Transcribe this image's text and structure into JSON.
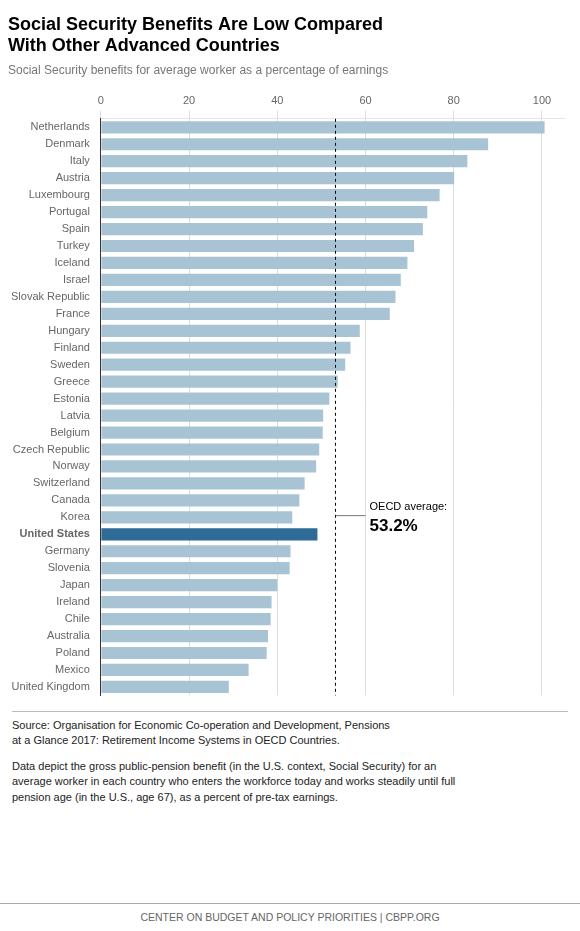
{
  "chart_data": {
    "type": "bar",
    "orientation": "horizontal",
    "title": [
      "Social Security Benefits Are Low Compared",
      "With Other Advanced Countries"
    ],
    "subtitle": "Social Security benefits for average worker as a percentage of earnings",
    "categories": [
      "Netherlands",
      "Denmark",
      "Italy",
      "Austria",
      "Luxembourg",
      "Portugal",
      "Spain",
      "Turkey",
      "Iceland",
      "Israel",
      "Slovak Republic",
      "France",
      "Hungary",
      "Finland",
      "Sweden",
      "Greece",
      "Estonia",
      "Latvia",
      "Belgium",
      "Czech Republic",
      "Norway",
      "Switzerland",
      "Canada",
      "Korea",
      "United States",
      "Germany",
      "Slovenia",
      "Japan",
      "Ireland",
      "Chile",
      "Australia",
      "Poland",
      "Mexico",
      "United Kingdom"
    ],
    "values": [
      100.6,
      87.8,
      83.1,
      80.1,
      76.8,
      74.0,
      73.0,
      71.0,
      69.5,
      68.0,
      66.8,
      65.5,
      58.7,
      56.6,
      55.4,
      53.7,
      51.8,
      50.4,
      50.3,
      49.5,
      48.8,
      46.2,
      45.0,
      43.4,
      49.1,
      43.0,
      42.8,
      40.0,
      38.7,
      38.5,
      37.9,
      37.6,
      33.5,
      29.0
    ],
    "colors": [
      "#a8c4d4",
      "#a8c4d4",
      "#a8c4d4",
      "#a8c4d4",
      "#a8c4d4",
      "#a8c4d4",
      "#a8c4d4",
      "#a8c4d4",
      "#a8c4d4",
      "#a8c4d4",
      "#a8c4d4",
      "#a8c4d4",
      "#a8c4d4",
      "#a8c4d4",
      "#a8c4d4",
      "#a8c4d4",
      "#a8c4d4",
      "#a8c4d4",
      "#a8c4d4",
      "#a8c4d4",
      "#a8c4d4",
      "#a8c4d4",
      "#a8c4d4",
      "#a8c4d4",
      "#2e6b96",
      "#a8c4d4",
      "#a8c4d4",
      "#a8c4d4",
      "#a8c4d4",
      "#a8c4d4",
      "#a8c4d4",
      "#a8c4d4",
      "#a8c4d4",
      "#a8c4d4"
    ],
    "xlim": [
      0,
      105
    ],
    "xticks": [
      0,
      20,
      40,
      60,
      80,
      100
    ],
    "grid": true,
    "annotations": [
      {
        "x": 53.2,
        "text": "OECD average:",
        "value_label": "53.2%"
      }
    ],
    "source": [
      "Source: Organisation for Economic Co-operation and Development, Pensions",
      "at a Glance 2017: Retirement Income Systems in OECD Countries."
    ],
    "note": [
      "Data depict the gross public-pension benefit (in the U.S. context, Social Security) for an",
      "average worker in each country who enters the workforce today and works steadily until full",
      "pension age (in the U.S., age 67), as a percent of pre-tax earnings."
    ],
    "footer": "CENTER ON BUDGET AND POLICY PRIORITIES | CBPP.ORG"
  }
}
